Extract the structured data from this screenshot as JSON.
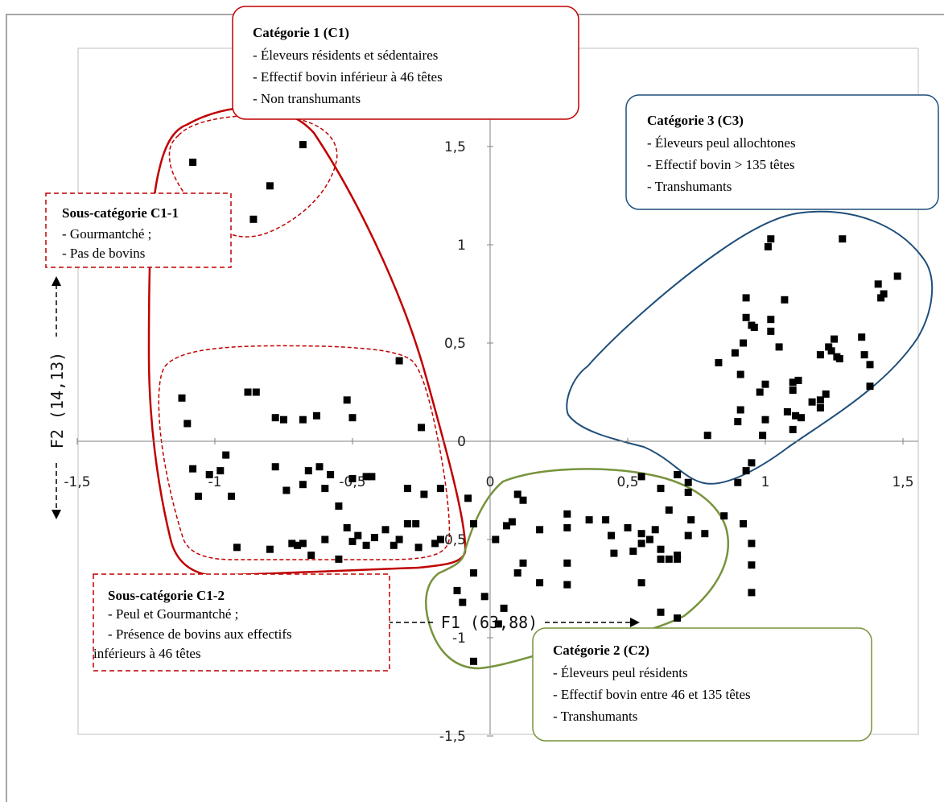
{
  "chart_data": {
    "type": "scatter",
    "xlabel": "F1 (63,88)",
    "ylabel": "F2 (14,13)",
    "xlim": [
      -1.5,
      1.5
    ],
    "ylim": [
      -1.5,
      1.7
    ],
    "xticks": [
      {
        "value": -1.5,
        "label": "-1,5"
      },
      {
        "value": -1,
        "label": "-1"
      },
      {
        "value": -0.5,
        "label": "-0,5"
      },
      {
        "value": 0,
        "label": "0"
      },
      {
        "value": 0.5,
        "label": "0,5"
      },
      {
        "value": 1,
        "label": "1"
      },
      {
        "value": 1.5,
        "label": "1,5"
      }
    ],
    "yticks": [
      {
        "value": 1.5,
        "label": "1,5"
      },
      {
        "value": 1,
        "label": "1"
      },
      {
        "value": 0.5,
        "label": "0,5"
      },
      {
        "value": 0,
        "label": "0"
      },
      {
        "value": -0.5,
        "label": "-0,5"
      },
      {
        "value": -1,
        "label": "-1"
      },
      {
        "value": -1.5,
        "label": "-1,5"
      }
    ],
    "grid": false,
    "points": [
      [
        -1.08,
        1.42
      ],
      [
        -0.68,
        1.51
      ],
      [
        -0.8,
        1.3
      ],
      [
        -0.86,
        1.13
      ],
      [
        -1.12,
        0.22
      ],
      [
        -1.1,
        0.09
      ],
      [
        -0.88,
        0.25
      ],
      [
        -0.85,
        0.25
      ],
      [
        -0.78,
        0.12
      ],
      [
        -0.75,
        0.11
      ],
      [
        -0.68,
        0.11
      ],
      [
        -0.63,
        0.13
      ],
      [
        -0.52,
        0.21
      ],
      [
        -0.5,
        0.12
      ],
      [
        -0.33,
        0.41
      ],
      [
        -0.25,
        0.07
      ],
      [
        -1.08,
        -0.14
      ],
      [
        -1.06,
        -0.28
      ],
      [
        -1.02,
        -0.17
      ],
      [
        -0.98,
        -0.15
      ],
      [
        -0.96,
        -0.07
      ],
      [
        -0.94,
        -0.28
      ],
      [
        -0.78,
        -0.13
      ],
      [
        -0.74,
        -0.25
      ],
      [
        -0.68,
        -0.22
      ],
      [
        -0.66,
        -0.15
      ],
      [
        -0.62,
        -0.13
      ],
      [
        -0.6,
        -0.24
      ],
      [
        -0.58,
        -0.17
      ],
      [
        -0.55,
        -0.33
      ],
      [
        -0.5,
        -0.19
      ],
      [
        -0.45,
        -0.18
      ],
      [
        -0.43,
        -0.18
      ],
      [
        -0.3,
        -0.24
      ],
      [
        -0.24,
        -0.27
      ],
      [
        -0.18,
        -0.24
      ],
      [
        -0.92,
        -0.54
      ],
      [
        -0.8,
        -0.55
      ],
      [
        -0.72,
        -0.52
      ],
      [
        -0.7,
        -0.53
      ],
      [
        -0.68,
        -0.52
      ],
      [
        -0.65,
        -0.58
      ],
      [
        -0.6,
        -0.5
      ],
      [
        -0.55,
        -0.6
      ],
      [
        -0.52,
        -0.44
      ],
      [
        -0.5,
        -0.51
      ],
      [
        -0.48,
        -0.48
      ],
      [
        -0.45,
        -0.53
      ],
      [
        -0.42,
        -0.49
      ],
      [
        -0.38,
        -0.45
      ],
      [
        -0.35,
        -0.53
      ],
      [
        -0.33,
        -0.5
      ],
      [
        -0.3,
        -0.42
      ],
      [
        -0.27,
        -0.42
      ],
      [
        -0.26,
        -0.54
      ],
      [
        -0.2,
        -0.52
      ],
      [
        -0.18,
        -0.5
      ],
      [
        0.08,
        -0.41
      ],
      [
        0.12,
        -0.3
      ],
      [
        0.18,
        -0.45
      ],
      [
        0.28,
        -0.37
      ],
      [
        0.28,
        -0.44
      ],
      [
        0.36,
        -0.4
      ],
      [
        0.42,
        -0.4
      ],
      [
        0.44,
        -0.48
      ],
      [
        0.45,
        -0.57
      ],
      [
        0.5,
        -0.44
      ],
      [
        0.52,
        -0.56
      ],
      [
        0.55,
        -0.47
      ],
      [
        0.55,
        -0.52
      ],
      [
        0.58,
        -0.5
      ],
      [
        0.6,
        -0.45
      ],
      [
        0.62,
        -0.55
      ],
      [
        0.65,
        -0.35
      ],
      [
        0.68,
        -0.58
      ],
      [
        0.72,
        -0.48
      ],
      [
        0.78,
        -0.47
      ],
      [
        0.85,
        -0.38
      ],
      [
        0.9,
        -0.21
      ],
      [
        0.92,
        -0.42
      ],
      [
        0.95,
        -0.52
      ],
      [
        0.62,
        -0.6
      ],
      [
        0.65,
        -0.6
      ],
      [
        0.68,
        -0.6
      ],
      [
        0.55,
        -0.18
      ],
      [
        0.62,
        -0.24
      ],
      [
        0.68,
        -0.17
      ],
      [
        0.72,
        -0.21
      ],
      [
        0.72,
        -0.26
      ],
      [
        0.73,
        -0.4
      ],
      [
        -0.08,
        -0.29
      ],
      [
        -0.06,
        -0.42
      ],
      [
        0.02,
        -0.5
      ],
      [
        0.06,
        -0.43
      ],
      [
        0.1,
        -0.27
      ],
      [
        0.12,
        -0.62
      ],
      [
        -0.06,
        -0.67
      ],
      [
        -0.02,
        -0.79
      ],
      [
        0.05,
        -0.85
      ],
      [
        -0.12,
        -0.76
      ],
      [
        -0.1,
        -0.82
      ],
      [
        -0.06,
        -1.12
      ],
      [
        0.03,
        -0.93
      ],
      [
        0.1,
        -0.67
      ],
      [
        0.18,
        -0.72
      ],
      [
        0.28,
        -0.62
      ],
      [
        0.28,
        -0.73
      ],
      [
        0.55,
        -0.72
      ],
      [
        0.62,
        -0.87
      ],
      [
        0.68,
        -0.9
      ],
      [
        0.95,
        -0.63
      ],
      [
        0.95,
        -0.77
      ],
      [
        0.78,
        -1.04
      ],
      [
        0.6,
        -1.02
      ],
      [
        0.79,
        0.03
      ],
      [
        0.83,
        0.4
      ],
      [
        0.89,
        0.45
      ],
      [
        0.92,
        0.5
      ],
      [
        0.91,
        0.16
      ],
      [
        0.9,
        0.1
      ],
      [
        0.91,
        0.34
      ],
      [
        0.93,
        0.63
      ],
      [
        0.93,
        0.73
      ],
      [
        0.95,
        0.59
      ],
      [
        0.96,
        0.58
      ],
      [
        0.99,
        0.03
      ],
      [
        1.0,
        0.11
      ],
      [
        1.0,
        0.29
      ],
      [
        1.02,
        0.56
      ],
      [
        1.02,
        0.62
      ],
      [
        1.05,
        0.48
      ],
      [
        1.07,
        0.72
      ],
      [
        1.1,
        0.06
      ],
      [
        1.1,
        0.3
      ],
      [
        1.1,
        0.26
      ],
      [
        1.11,
        0.13
      ],
      [
        1.12,
        0.31
      ],
      [
        1.13,
        0.12
      ],
      [
        1.17,
        0.2
      ],
      [
        1.2,
        0.21
      ],
      [
        1.2,
        0.17
      ],
      [
        1.22,
        0.24
      ],
      [
        1.23,
        0.48
      ],
      [
        1.24,
        0.46
      ],
      [
        1.25,
        0.52
      ],
      [
        1.26,
        0.43
      ],
      [
        1.27,
        0.42
      ],
      [
        1.28,
        1.03
      ],
      [
        1.35,
        0.53
      ],
      [
        1.36,
        0.44
      ],
      [
        1.38,
        0.39
      ],
      [
        1.38,
        0.28
      ],
      [
        1.41,
        0.8
      ],
      [
        1.42,
        0.73
      ],
      [
        1.43,
        0.75
      ],
      [
        1.48,
        0.84
      ],
      [
        0.95,
        -0.11
      ],
      [
        0.93,
        -0.15
      ],
      [
        1.08,
        0.15
      ],
      [
        0.98,
        0.25
      ],
      [
        1.2,
        0.44
      ],
      [
        1.01,
        0.99
      ],
      [
        1.02,
        1.03
      ]
    ]
  },
  "legend_boxes": {
    "c1": {
      "title": "Catégorie 1 (C1)",
      "lines": [
        "- Éleveurs résidents et sédentaires",
        "- Effectif bovin  inférieur à 46 têtes",
        "- Non transhumants"
      ],
      "color": "#c00000"
    },
    "c3": {
      "title": "Catégorie 3 (C3)",
      "lines": [
        "- Éleveurs peul allochtones",
        "- Effectif bovin  > 135 têtes",
        "- Transhumants"
      ],
      "color": "#1f4e79"
    },
    "c2": {
      "title": "Catégorie 2 (C2)",
      "lines": [
        "- Éleveurs peul résidents",
        "- Effectif bovin  entre 46 et 135 têtes",
        "- Transhumants"
      ],
      "color": "#77933c"
    },
    "c1_1": {
      "title": "Sous-catégorie C1-1",
      "lines": [
        "- Gourmantché ;",
        "- Pas de bovins"
      ],
      "color": "#c00000"
    },
    "c1_2": {
      "title": "Sous-catégorie C1-2",
      "lines": [
        "- Peul et Gourmantché ;",
        "- Présence de bovins aux effectifs",
        "inférieurs à 46 têtes"
      ],
      "color": "#c00000"
    }
  },
  "colors": {
    "point": "#000000",
    "axis": "#808080",
    "frame": "#a6a6a6"
  }
}
